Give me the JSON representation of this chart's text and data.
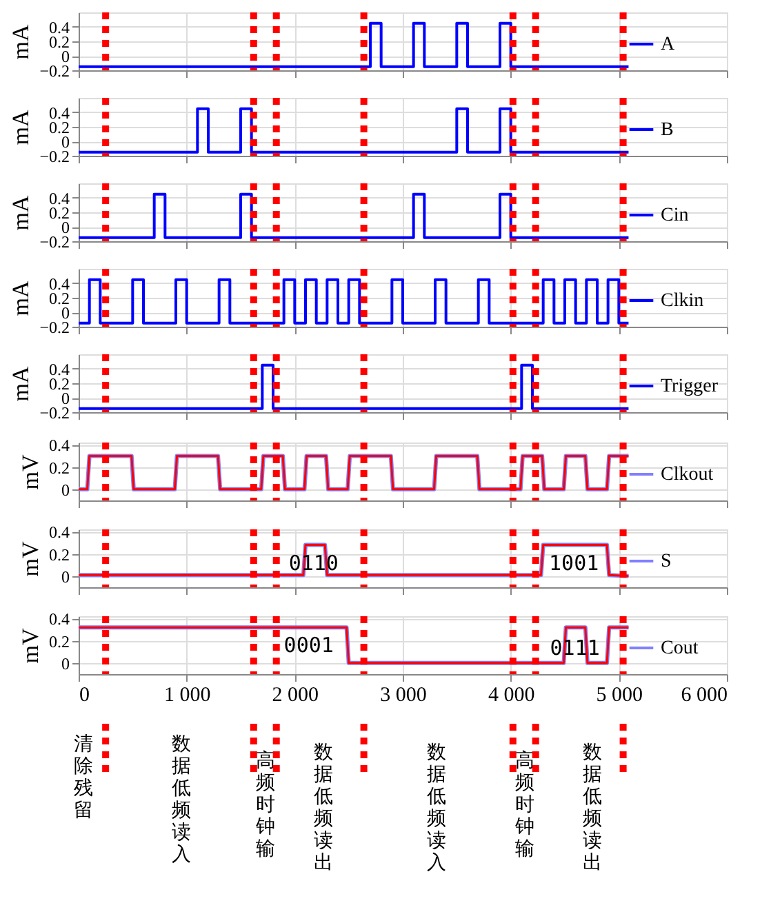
{
  "chart_data": [
    {
      "type": "step",
      "ylabel": "mA",
      "xlim": [
        0,
        6000
      ],
      "ylim": [
        -0.2,
        0.6
      ],
      "yticks": [
        -0.2,
        0,
        0.2,
        0.4
      ],
      "xticks": [
        0,
        1000,
        2000,
        3000,
        4000,
        5000,
        6000
      ],
      "tick_labels": "y",
      "grid": true,
      "legend": "right",
      "ref_lines": [
        {
          "axis": "x",
          "value": 250,
          "color": "#ff0000",
          "line_style": "dotted"
        },
        {
          "axis": "x",
          "value": 1620,
          "color": "#ff0000",
          "line_style": "dotted"
        },
        {
          "axis": "x",
          "value": 1830,
          "color": "#ff0000",
          "line_style": "dotted"
        },
        {
          "axis": "x",
          "value": 2640,
          "color": "#ff0000",
          "line_style": "dotted"
        },
        {
          "axis": "x",
          "value": 4020,
          "color": "#ff0000",
          "line_style": "dotted"
        },
        {
          "axis": "x",
          "value": 4230,
          "color": "#ff0000",
          "line_style": "dotted"
        },
        {
          "axis": "x",
          "value": 5040,
          "color": "#ff0000",
          "line_style": "dotted"
        }
      ],
      "series": [
        {
          "name": "A",
          "color": "#0000ff",
          "x": [
            0,
            2700,
            2800,
            3100,
            3200,
            3500,
            3600,
            3900,
            4000,
            5090
          ],
          "values": [
            -0.15,
            0.45,
            -0.15,
            0.45,
            -0.15,
            0.45,
            -0.15,
            0.45,
            -0.15,
            -0.15
          ]
        }
      ]
    },
    {
      "type": "step",
      "ylabel": "mA",
      "xlim": [
        0,
        6000
      ],
      "ylim": [
        -0.2,
        0.6
      ],
      "yticks": [
        -0.2,
        0,
        0.2,
        0.4
      ],
      "xticks": [
        0,
        1000,
        2000,
        3000,
        4000,
        5000,
        6000
      ],
      "tick_labels": "y",
      "grid": true,
      "legend": "right",
      "ref_lines": [
        {
          "axis": "x",
          "value": 250,
          "color": "#ff0000",
          "line_style": "dotted"
        },
        {
          "axis": "x",
          "value": 1620,
          "color": "#ff0000",
          "line_style": "dotted"
        },
        {
          "axis": "x",
          "value": 1830,
          "color": "#ff0000",
          "line_style": "dotted"
        },
        {
          "axis": "x",
          "value": 2640,
          "color": "#ff0000",
          "line_style": "dotted"
        },
        {
          "axis": "x",
          "value": 4020,
          "color": "#ff0000",
          "line_style": "dotted"
        },
        {
          "axis": "x",
          "value": 4230,
          "color": "#ff0000",
          "line_style": "dotted"
        },
        {
          "axis": "x",
          "value": 5040,
          "color": "#ff0000",
          "line_style": "dotted"
        }
      ],
      "series": [
        {
          "name": "B",
          "color": "#0000ff",
          "x": [
            0,
            1100,
            1200,
            1500,
            1600,
            3500,
            3600,
            3900,
            4000,
            5090
          ],
          "values": [
            -0.15,
            0.45,
            -0.15,
            0.45,
            -0.15,
            0.45,
            -0.15,
            0.45,
            -0.15,
            -0.15
          ]
        }
      ]
    },
    {
      "type": "step",
      "ylabel": "mA",
      "xlim": [
        0,
        6000
      ],
      "ylim": [
        -0.2,
        0.6
      ],
      "yticks": [
        -0.2,
        0,
        0.2,
        0.4
      ],
      "xticks": [
        0,
        1000,
        2000,
        3000,
        4000,
        5000,
        6000
      ],
      "tick_labels": "y",
      "grid": true,
      "legend": "right",
      "ref_lines": [
        {
          "axis": "x",
          "value": 250,
          "color": "#ff0000",
          "line_style": "dotted"
        },
        {
          "axis": "x",
          "value": 1620,
          "color": "#ff0000",
          "line_style": "dotted"
        },
        {
          "axis": "x",
          "value": 1830,
          "color": "#ff0000",
          "line_style": "dotted"
        },
        {
          "axis": "x",
          "value": 2640,
          "color": "#ff0000",
          "line_style": "dotted"
        },
        {
          "axis": "x",
          "value": 4020,
          "color": "#ff0000",
          "line_style": "dotted"
        },
        {
          "axis": "x",
          "value": 4230,
          "color": "#ff0000",
          "line_style": "dotted"
        },
        {
          "axis": "x",
          "value": 5040,
          "color": "#ff0000",
          "line_style": "dotted"
        }
      ],
      "series": [
        {
          "name": "Cin",
          "color": "#0000ff",
          "x": [
            0,
            700,
            800,
            1500,
            1600,
            3100,
            3200,
            3900,
            4000,
            5090
          ],
          "values": [
            -0.15,
            0.45,
            -0.15,
            0.45,
            -0.15,
            0.45,
            -0.15,
            0.45,
            -0.15,
            -0.15
          ]
        }
      ]
    },
    {
      "type": "step",
      "ylabel": "mA",
      "xlim": [
        0,
        6000
      ],
      "ylim": [
        -0.2,
        0.6
      ],
      "yticks": [
        -0.2,
        0,
        0.2,
        0.4
      ],
      "xticks": [
        0,
        1000,
        2000,
        3000,
        4000,
        5000,
        6000
      ],
      "tick_labels": "y",
      "grid": true,
      "legend": "right",
      "ref_lines": [
        {
          "axis": "x",
          "value": 250,
          "color": "#ff0000",
          "line_style": "dotted"
        },
        {
          "axis": "x",
          "value": 1620,
          "color": "#ff0000",
          "line_style": "dotted"
        },
        {
          "axis": "x",
          "value": 1830,
          "color": "#ff0000",
          "line_style": "dotted"
        },
        {
          "axis": "x",
          "value": 2640,
          "color": "#ff0000",
          "line_style": "dotted"
        },
        {
          "axis": "x",
          "value": 4020,
          "color": "#ff0000",
          "line_style": "dotted"
        },
        {
          "axis": "x",
          "value": 4230,
          "color": "#ff0000",
          "line_style": "dotted"
        },
        {
          "axis": "x",
          "value": 5040,
          "color": "#ff0000",
          "line_style": "dotted"
        }
      ],
      "series": [
        {
          "name": "Clkin",
          "color": "#0000ff",
          "x": [
            0,
            100,
            200,
            500,
            600,
            900,
            1000,
            1300,
            1400,
            1900,
            2000,
            2100,
            2200,
            2300,
            2400,
            2500,
            2600,
            2900,
            3000,
            3300,
            3400,
            3700,
            3800,
            4300,
            4400,
            4500,
            4600,
            4700,
            4800,
            4900,
            5000,
            5090
          ],
          "values": [
            -0.15,
            0.45,
            -0.15,
            0.45,
            -0.15,
            0.45,
            -0.15,
            0.45,
            -0.15,
            0.45,
            -0.15,
            0.45,
            -0.15,
            0.45,
            -0.15,
            0.45,
            -0.15,
            0.45,
            -0.15,
            0.45,
            -0.15,
            0.45,
            -0.15,
            0.45,
            -0.15,
            0.45,
            -0.15,
            0.45,
            -0.15,
            0.45,
            -0.15,
            -0.15
          ]
        }
      ]
    },
    {
      "type": "step",
      "ylabel": "mA",
      "xlim": [
        0,
        6000
      ],
      "ylim": [
        -0.2,
        0.6
      ],
      "yticks": [
        -0.2,
        0,
        0.2,
        0.4
      ],
      "xticks": [
        0,
        1000,
        2000,
        3000,
        4000,
        5000,
        6000
      ],
      "tick_labels": "y",
      "grid": true,
      "legend": "right",
      "ref_lines": [
        {
          "axis": "x",
          "value": 250,
          "color": "#ff0000",
          "line_style": "dotted"
        },
        {
          "axis": "x",
          "value": 1620,
          "color": "#ff0000",
          "line_style": "dotted"
        },
        {
          "axis": "x",
          "value": 1830,
          "color": "#ff0000",
          "line_style": "dotted"
        },
        {
          "axis": "x",
          "value": 2640,
          "color": "#ff0000",
          "line_style": "dotted"
        },
        {
          "axis": "x",
          "value": 4020,
          "color": "#ff0000",
          "line_style": "dotted"
        },
        {
          "axis": "x",
          "value": 4230,
          "color": "#ff0000",
          "line_style": "dotted"
        },
        {
          "axis": "x",
          "value": 5040,
          "color": "#ff0000",
          "line_style": "dotted"
        }
      ],
      "series": [
        {
          "name": "Trigger",
          "color": "#0000ff",
          "x": [
            0,
            1700,
            1800,
            4100,
            4200,
            5090
          ],
          "values": [
            -0.15,
            0.45,
            -0.15,
            0.45,
            -0.15,
            -0.15
          ]
        }
      ]
    },
    {
      "type": "line",
      "ylabel": "mV",
      "xlim": [
        0,
        6000
      ],
      "ylim": [
        -0.1,
        0.42
      ],
      "yticks": [
        0,
        0.2,
        0.4
      ],
      "xticks": [
        0,
        1000,
        2000,
        3000,
        4000,
        5000,
        6000
      ],
      "tick_labels": "y",
      "grid": true,
      "legend": "right",
      "ref_lines": [
        {
          "axis": "x",
          "value": 250,
          "color": "#ff0000",
          "line_style": "dotted"
        },
        {
          "axis": "x",
          "value": 1620,
          "color": "#ff0000",
          "line_style": "dotted"
        },
        {
          "axis": "x",
          "value": 1830,
          "color": "#ff0000",
          "line_style": "dotted"
        },
        {
          "axis": "x",
          "value": 2640,
          "color": "#ff0000",
          "line_style": "dotted"
        },
        {
          "axis": "x",
          "value": 4020,
          "color": "#ff0000",
          "line_style": "dotted"
        },
        {
          "axis": "x",
          "value": 4230,
          "color": "#ff0000",
          "line_style": "dotted"
        },
        {
          "axis": "x",
          "value": 5040,
          "color": "#ff0000",
          "line_style": "dotted"
        }
      ],
      "series": [
        {
          "name": "Clkout",
          "color": "#8080ff",
          "x": [
            0,
            80,
            100,
            490,
            510,
            890,
            910,
            1290,
            1310,
            1690,
            1710,
            1890,
            1910,
            2090,
            2110,
            2290,
            2310,
            2490,
            2510,
            2890,
            2910,
            3290,
            3310,
            3690,
            3710,
            4090,
            4110,
            4290,
            4310,
            4490,
            4510,
            4690,
            4710,
            4890,
            4910,
            5090
          ],
          "values": [
            0,
            0,
            0.3,
            0.3,
            0,
            0,
            0.3,
            0.3,
            0,
            0,
            0.3,
            0.3,
            0,
            0,
            0.3,
            0.3,
            0,
            0,
            0.3,
            0.3,
            0,
            0,
            0.3,
            0.3,
            0,
            0,
            0.3,
            0.3,
            0,
            0,
            0.3,
            0.3,
            0,
            0,
            0.3,
            0.3
          ]
        },
        {
          "color": "#ff0000",
          "x": [
            0,
            80,
            100,
            490,
            510,
            890,
            910,
            1290,
            1310,
            1690,
            1710,
            1890,
            1910,
            2090,
            2110,
            2290,
            2310,
            2490,
            2510,
            2890,
            2910,
            3290,
            3310,
            3690,
            3710,
            4090,
            4110,
            4290,
            4310,
            4490,
            4510,
            4690,
            4710,
            4890,
            4910,
            5090
          ],
          "values": [
            0,
            0,
            0.3,
            0.3,
            0,
            0,
            0.3,
            0.3,
            0,
            0,
            0.3,
            0.3,
            0,
            0,
            0.3,
            0.3,
            0,
            0,
            0.3,
            0.3,
            0,
            0,
            0.3,
            0.3,
            0,
            0,
            0.3,
            0.3,
            0,
            0,
            0.3,
            0.3,
            0,
            0,
            0.3,
            0.3
          ]
        }
      ]
    },
    {
      "type": "line",
      "ylabel": "mV",
      "xlim": [
        0,
        6000
      ],
      "ylim": [
        -0.1,
        0.42
      ],
      "yticks": [
        0,
        0.2,
        0.4
      ],
      "xticks": [
        0,
        1000,
        2000,
        3000,
        4000,
        5000,
        6000
      ],
      "tick_labels": "y",
      "grid": true,
      "legend": "right",
      "ref_lines": [
        {
          "axis": "x",
          "value": 250,
          "color": "#ff0000",
          "line_style": "dotted"
        },
        {
          "axis": "x",
          "value": 1620,
          "color": "#ff0000",
          "line_style": "dotted"
        },
        {
          "axis": "x",
          "value": 1830,
          "color": "#ff0000",
          "line_style": "dotted"
        },
        {
          "axis": "x",
          "value": 2640,
          "color": "#ff0000",
          "line_style": "dotted"
        },
        {
          "axis": "x",
          "value": 4020,
          "color": "#ff0000",
          "line_style": "dotted"
        },
        {
          "axis": "x",
          "value": 4230,
          "color": "#ff0000",
          "line_style": "dotted"
        },
        {
          "axis": "x",
          "value": 5040,
          "color": "#ff0000",
          "line_style": "dotted"
        }
      ],
      "annotations": [
        "0110",
        "1001"
      ],
      "series": [
        {
          "name": "S",
          "color": "#8080ff",
          "x": [
            0,
            2080,
            2100,
            2280,
            2300,
            4280,
            4300,
            4890,
            4910,
            5090
          ],
          "values": [
            0.01,
            0.01,
            0.28,
            0.28,
            0.01,
            0.01,
            0.28,
            0.28,
            0.01,
            0
          ]
        },
        {
          "color": "#ff0000",
          "x": [
            0,
            2080,
            2100,
            2280,
            2300,
            4280,
            4300,
            4890,
            4910,
            5090
          ],
          "values": [
            0.01,
            0.01,
            0.28,
            0.28,
            0.01,
            0.01,
            0.28,
            0.28,
            0.01,
            0
          ]
        }
      ]
    },
    {
      "type": "line",
      "ylabel": "mV",
      "xlim": [
        0,
        6000
      ],
      "ylim": [
        -0.1,
        0.42
      ],
      "yticks": [
        0,
        0.2,
        0.4
      ],
      "xticks": [
        0,
        {
          "value": 1000,
          "label": "1 000"
        },
        {
          "value": 2000,
          "label": "2 000"
        },
        {
          "value": 3000,
          "label": "3 000"
        },
        {
          "value": 4000,
          "label": "4 000"
        },
        {
          "value": 5000,
          "label": "5 000"
        },
        {
          "value": 6000,
          "label": "6 000"
        }
      ],
      "grid": true,
      "legend": "right",
      "ref_lines": [
        {
          "axis": "x",
          "value": 250,
          "color": "#ff0000",
          "line_style": "dotted"
        },
        {
          "axis": "x",
          "value": 1620,
          "color": "#ff0000",
          "line_style": "dotted"
        },
        {
          "axis": "x",
          "value": 1830,
          "color": "#ff0000",
          "line_style": "dotted"
        },
        {
          "axis": "x",
          "value": 2640,
          "color": "#ff0000",
          "line_style": "dotted"
        },
        {
          "axis": "x",
          "value": 4020,
          "color": "#ff0000",
          "line_style": "dotted"
        },
        {
          "axis": "x",
          "value": 4230,
          "color": "#ff0000",
          "line_style": "dotted"
        },
        {
          "axis": "x",
          "value": 5040,
          "color": "#ff0000",
          "line_style": "dotted"
        }
      ],
      "annotations": [
        "0001",
        "0111",
        "清除残留",
        "数据低频读入",
        "高频时钟输",
        "数据低频读出",
        "数据低频读入",
        "高频时钟输",
        "数据低频读出"
      ],
      "series": [
        {
          "name": "Cout",
          "color": "#8080ff",
          "x": [
            0,
            2480,
            2500,
            4490,
            4510,
            4690,
            4710,
            4890,
            4910,
            5090
          ],
          "values": [
            0.32,
            0.32,
            0,
            0,
            0.32,
            0.32,
            0,
            0,
            0.32,
            0.32
          ]
        },
        {
          "color": "#ff0000",
          "x": [
            0,
            2480,
            2500,
            4490,
            4510,
            4690,
            4710,
            4890,
            4910,
            5090
          ],
          "values": [
            0.32,
            0.32,
            0,
            0,
            0.32,
            0.32,
            0,
            0,
            0.32,
            0.32
          ]
        }
      ]
    }
  ]
}
